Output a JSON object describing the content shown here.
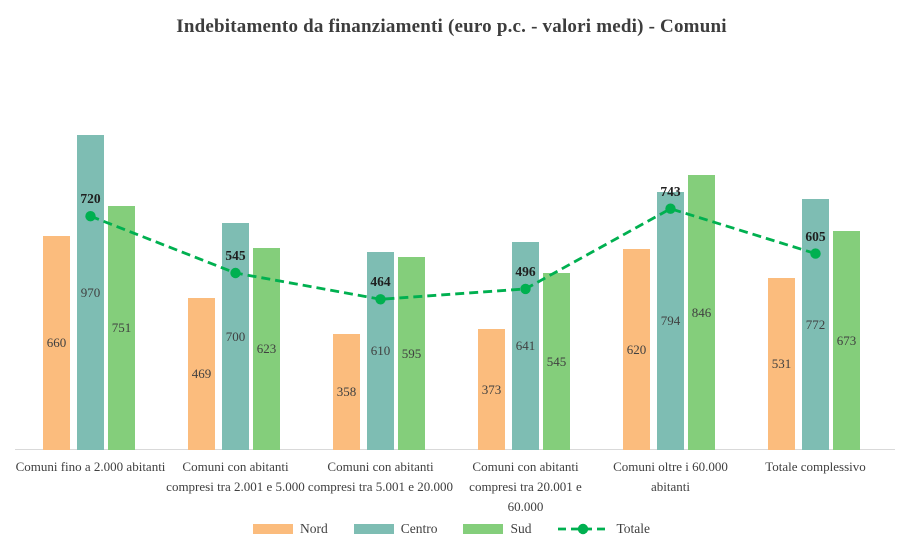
{
  "title": "Indebitamento da finanziamenti (euro p.c. - valori medi) - Comuni",
  "chart_data": {
    "type": "bar",
    "title": "Indebitamento da finanziamenti (euro p.c. - valori medi) - Comuni",
    "categories": [
      "Comuni fino a 2.000 abitanti",
      "Comuni con abitanti compresi tra 2.001 e 5.000",
      "Comuni con abitanti compresi tra 5.001 e 20.000",
      "Comuni con abitanti compresi tra 20.001 e 60.000",
      "Comuni oltre i 60.000 abitanti",
      "Totale complessivo"
    ],
    "series": [
      {
        "name": "Nord",
        "type": "bar",
        "color": "#FBBC7D",
        "values": [
          660,
          469,
          358,
          373,
          620,
          531
        ]
      },
      {
        "name": "Centro",
        "type": "bar",
        "color": "#7EBDB3",
        "values": [
          970,
          700,
          610,
          641,
          794,
          772
        ]
      },
      {
        "name": "Sud",
        "type": "bar",
        "color": "#84CE7B",
        "values": [
          751,
          623,
          595,
          545,
          846,
          673
        ]
      },
      {
        "name": "Totale",
        "type": "line",
        "color": "#00B050",
        "dashed": true,
        "values": [
          720,
          545,
          464,
          496,
          743,
          605
        ]
      }
    ],
    "xlabel": "",
    "ylabel": "",
    "ylim": [
      0,
      1170
    ],
    "grid": false,
    "legend_position": "bottom",
    "value_labels": true,
    "colors": {
      "text": "#404040",
      "totale_label": "#1f1f1f",
      "axis_line": "#d9d9d9",
      "background": "#ffffff"
    }
  }
}
